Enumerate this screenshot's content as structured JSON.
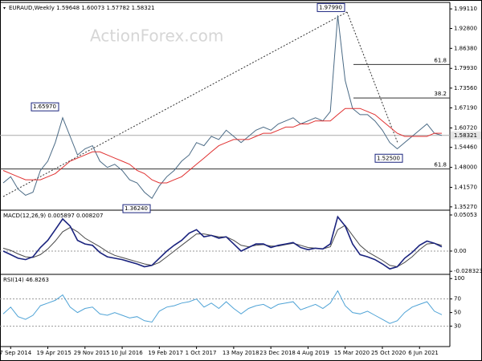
{
  "chart_data": [
    {
      "type": "line",
      "title": "EURAUD,Weekly  1.59648 1.60073 1.57782 1.58321",
      "watermark": "ActionForex.com",
      "ylim": [
        1.342,
        2.012
      ],
      "yticks": [
        {
          "value": 1.9911,
          "label": "1.99110"
        },
        {
          "value": 1.928,
          "label": "1.92800"
        },
        {
          "value": 1.8638,
          "label": "1.86380"
        },
        {
          "value": 1.7993,
          "label": "1.79930"
        },
        {
          "value": 1.7356,
          "label": "1.73560"
        },
        {
          "value": 1.6719,
          "label": "1.67190"
        },
        {
          "value": 1.6072,
          "label": "1.60720"
        },
        {
          "value": 1.5446,
          "label": "1.54460"
        },
        {
          "value": 1.48,
          "label": "1.48000"
        },
        {
          "value": 1.4157,
          "label": "1.41570"
        },
        {
          "value": 1.3527,
          "label": "1.35270"
        }
      ],
      "last_price": {
        "value": 1.58321,
        "label": "1.58321"
      },
      "annotations": [
        {
          "value": 1.9799,
          "label": "1.97990"
        },
        {
          "value": 1.6597,
          "label": "1.65970"
        },
        {
          "value": 1.3624,
          "label": "1.36240"
        },
        {
          "value": 1.525,
          "label": "1.52500"
        }
      ],
      "levels": [
        {
          "value": 1.812,
          "label": "61.8"
        },
        {
          "value": 1.704,
          "label": "38.2"
        },
        {
          "value": 1.475,
          "label": "61.8"
        }
      ],
      "series": [
        {
          "color": "#4a6a85",
          "values": [
            1.43,
            1.45,
            1.41,
            1.39,
            1.4,
            1.47,
            1.5,
            1.56,
            1.64,
            1.58,
            1.52,
            1.54,
            1.55,
            1.5,
            1.48,
            1.49,
            1.47,
            1.44,
            1.43,
            1.4,
            1.38,
            1.42,
            1.45,
            1.47,
            1.5,
            1.52,
            1.56,
            1.55,
            1.58,
            1.57,
            1.6,
            1.58,
            1.56,
            1.58,
            1.6,
            1.61,
            1.6,
            1.62,
            1.63,
            1.64,
            1.62,
            1.63,
            1.64,
            1.63,
            1.66,
            1.97,
            1.76,
            1.67,
            1.65,
            1.65,
            1.63,
            1.6,
            1.56,
            1.54,
            1.56,
            1.58,
            1.6,
            1.62,
            1.59,
            1.583
          ]
        },
        {
          "color": "#e03030",
          "values": [
            1.47,
            1.46,
            1.45,
            1.44,
            1.44,
            1.44,
            1.45,
            1.46,
            1.48,
            1.5,
            1.51,
            1.52,
            1.53,
            1.53,
            1.52,
            1.51,
            1.5,
            1.49,
            1.47,
            1.46,
            1.44,
            1.43,
            1.43,
            1.44,
            1.45,
            1.47,
            1.49,
            1.51,
            1.53,
            1.55,
            1.56,
            1.57,
            1.57,
            1.57,
            1.58,
            1.59,
            1.59,
            1.6,
            1.61,
            1.61,
            1.62,
            1.62,
            1.63,
            1.63,
            1.63,
            1.65,
            1.67,
            1.67,
            1.67,
            1.66,
            1.65,
            1.63,
            1.61,
            1.59,
            1.58,
            1.58,
            1.58,
            1.58,
            1.59,
            1.59
          ]
        }
      ]
    },
    {
      "type": "line",
      "title": "MACD(12,26,9) 0.005897 0.008207",
      "ylim": [
        -0.0315,
        0.055
      ],
      "yticks": [
        0.05053,
        {
          "value": 0,
          "label": "0.00"
        },
        -0.028323
      ],
      "zero_line": 0,
      "series": [
        {
          "color": "#4a4a4a",
          "values": [
            0.004,
            0.001,
            -0.004,
            -0.008,
            -0.009,
            -0.005,
            0.003,
            0.014,
            0.027,
            0.033,
            0.027,
            0.018,
            0.012,
            0.006,
            -0.001,
            -0.006,
            -0.009,
            -0.012,
            -0.015,
            -0.018,
            -0.02,
            -0.016,
            -0.008,
            0.0,
            0.008,
            0.016,
            0.024,
            0.024,
            0.022,
            0.02,
            0.02,
            0.015,
            0.008,
            0.006,
            0.008,
            0.009,
            0.007,
            0.007,
            0.009,
            0.011,
            0.008,
            0.005,
            0.004,
            0.003,
            0.006,
            0.03,
            0.036,
            0.022,
            0.008,
            -0.001,
            -0.007,
            -0.013,
            -0.02,
            -0.022,
            -0.016,
            -0.008,
            0.002,
            0.01,
            0.011,
            0.0082
          ]
        },
        {
          "color": "#1a237e",
          "values": [
            0.0,
            -0.005,
            -0.01,
            -0.012,
            -0.008,
            0.005,
            0.015,
            0.03,
            0.045,
            0.035,
            0.015,
            0.01,
            0.008,
            -0.002,
            -0.008,
            -0.01,
            -0.012,
            -0.015,
            -0.018,
            -0.022,
            -0.02,
            -0.01,
            0.0,
            0.008,
            0.015,
            0.025,
            0.03,
            0.02,
            0.022,
            0.018,
            0.02,
            0.01,
            0.0,
            0.005,
            0.01,
            0.01,
            0.005,
            0.008,
            0.01,
            0.012,
            0.005,
            0.002,
            0.004,
            0.003,
            0.01,
            0.048,
            0.035,
            0.01,
            -0.005,
            -0.008,
            -0.012,
            -0.018,
            -0.025,
            -0.022,
            -0.01,
            -0.002,
            0.008,
            0.014,
            0.011,
            0.0059
          ]
        }
      ]
    },
    {
      "type": "line",
      "title": "RSI(14) 46.8263",
      "ylim": [
        0,
        105
      ],
      "yticks": [
        100,
        70,
        50,
        30
      ],
      "guides": [
        70,
        30
      ],
      "categories": [
        null,
        "7 Sep 2014",
        null,
        null,
        null,
        null,
        "19 Apr 2015",
        null,
        null,
        null,
        null,
        "29 Nov 2015",
        null,
        null,
        null,
        null,
        "10 Jul 2016",
        null,
        null,
        null,
        null,
        "19 Feb 2017",
        null,
        null,
        null,
        null,
        "1 Oct 2017",
        null,
        null,
        null,
        null,
        "13 May 2018",
        null,
        null,
        null,
        null,
        "23 Dec 2018",
        null,
        null,
        null,
        null,
        "4 Aug 2019",
        null,
        null,
        null,
        null,
        "15 Mar 2020",
        null,
        null,
        null,
        null,
        "25 Oct 2020",
        null,
        null,
        null,
        null,
        "6 Jun 2021",
        null,
        null,
        null
      ],
      "series": [
        {
          "color": "#4fa3d6",
          "values": [
            48,
            58,
            44,
            40,
            46,
            60,
            64,
            68,
            76,
            58,
            50,
            56,
            58,
            48,
            46,
            50,
            46,
            42,
            44,
            38,
            36,
            52,
            58,
            60,
            64,
            66,
            70,
            58,
            64,
            56,
            66,
            56,
            48,
            56,
            60,
            62,
            56,
            62,
            64,
            66,
            54,
            58,
            62,
            56,
            64,
            82,
            60,
            50,
            48,
            52,
            46,
            40,
            34,
            38,
            50,
            58,
            62,
            66,
            52,
            46.8263
          ]
        }
      ]
    }
  ]
}
